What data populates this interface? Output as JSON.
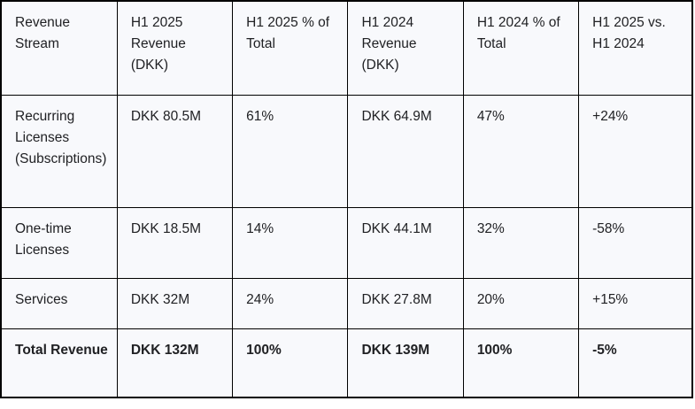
{
  "colors": {
    "cell_background": "#f8f9fc",
    "border": "#000000",
    "text": "#202124",
    "page_background": "#ffffff"
  },
  "table": {
    "header": [
      "Revenue Stream",
      "H1 2025 Revenue (DKK)",
      "H1 2025 % of Total",
      "H1 2024 Revenue (DKK)",
      "H1 2024 % of Total",
      "H1 2025 vs. H1 2024"
    ],
    "rows": [
      {
        "cells": [
          "Recurring Licenses (Subscriptions)",
          "DKK 80.5M",
          "61%",
          "DKK 64.9M",
          "47%",
          "+24%"
        ]
      },
      {
        "cells": [
          "One-time Licenses",
          "DKK 18.5M",
          "14%",
          "DKK 44.1M",
          "32%",
          "-58%"
        ]
      },
      {
        "cells": [
          "Services",
          "DKK 32M",
          "24%",
          "DKK 27.8M",
          "20%",
          "+15%"
        ]
      },
      {
        "cells": [
          "Total Revenue",
          "DKK 132M",
          "100%",
          "DKK 139M",
          "100%",
          "-5%"
        ]
      }
    ]
  }
}
